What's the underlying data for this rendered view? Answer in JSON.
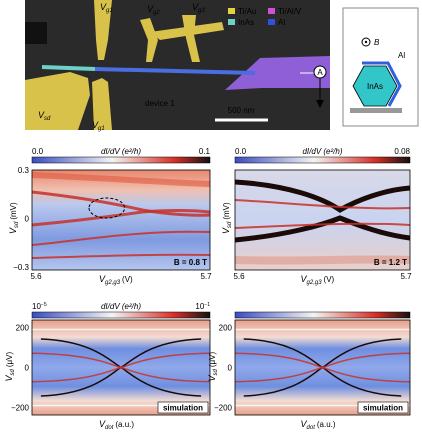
{
  "sem": {
    "gate_labels": [
      {
        "v": "V",
        "sub": "g1"
      },
      {
        "v": "V",
        "sub": "g2"
      },
      {
        "v": "V",
        "sub": "g3"
      }
    ],
    "sd_label": {
      "v": "V",
      "sub": "sd"
    },
    "g1_bottom": {
      "v": "V",
      "sub": "g1"
    },
    "legend": [
      "Ti/Au",
      "Ti/Al/V",
      "InAs",
      "Al"
    ],
    "device": "device 1",
    "scale_bar": "500 nm",
    "probe": "A"
  },
  "inset": {
    "field": "B",
    "shell": "Al",
    "core": "InAs"
  },
  "measured": [
    {
      "cbar": {
        "min": "0.0",
        "label": "dI/dV (e²/h)",
        "max": "0.1"
      },
      "yticks": [
        "0.3",
        "0",
        "−0.3"
      ],
      "ylabel": {
        "v": "V",
        "sub": "sd",
        "unit": "(mV)"
      },
      "xticks": [
        "5.6",
        "5.7"
      ],
      "xlabel": {
        "v": "V",
        "sub": "g2,g3",
        "unit": "(V)"
      },
      "field": "B = 0.8 T"
    },
    {
      "cbar": {
        "min": "0.0",
        "label": "dI/dV (e²/h)",
        "max": "0.08"
      },
      "yticks": [],
      "ylabel": {
        "v": "V",
        "sub": "sd",
        "unit": "(mV)"
      },
      "xticks": [
        "5.6",
        "5.7"
      ],
      "xlabel": {
        "v": "V",
        "sub": "g2,g3",
        "unit": "(V)"
      },
      "field": "B = 1.2 T"
    }
  ],
  "simulated": {
    "cbar": {
      "min": {
        "base": "10",
        "exp": "−5"
      },
      "label": "dI/dV (e²/h)",
      "max": {
        "base": "10",
        "exp": "−1"
      }
    },
    "panels": [
      {
        "yticks": [
          "200",
          "0",
          "−200"
        ],
        "ylabel": {
          "v": "V",
          "sub": "sd",
          "unit": "(μV)"
        },
        "xlabel": {
          "v": "V",
          "sub": "dot",
          "unit": "(a.u.)"
        },
        "tag": "simulation"
      },
      {
        "yticks": [
          "200",
          "0",
          "−200"
        ],
        "ylabel": {
          "v": "V",
          "sub": "sd",
          "unit": "(μV)"
        },
        "xlabel": {
          "v": "V",
          "sub": "dot",
          "unit": "(a.u.)"
        },
        "tag": "simulation"
      }
    ]
  }
}
